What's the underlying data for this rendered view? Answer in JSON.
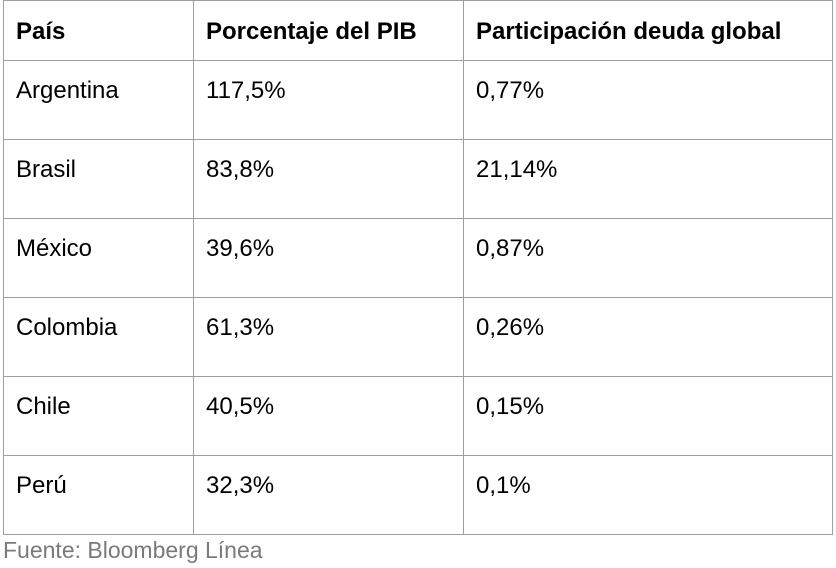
{
  "table": {
    "headers": [
      "País",
      "Porcentaje del PIB",
      "Participación deuda global"
    ],
    "rows": [
      [
        "Argentina",
        "117,5%",
        "0,77%"
      ],
      [
        "Brasil",
        "83,8%",
        "21,14%"
      ],
      [
        "México",
        "39,6%",
        "0,87%"
      ],
      [
        "Colombia",
        "61,3%",
        "0,26%"
      ],
      [
        "Chile",
        "40,5%",
        "0,15%"
      ],
      [
        "Perú",
        "32,3%",
        "0,1%"
      ]
    ]
  },
  "source": "Fuente: Bloomberg Línea",
  "colors": {
    "border": "#9e9e9e",
    "text": "#000000",
    "source_text": "#7a7a7a",
    "background": "#ffffff"
  }
}
